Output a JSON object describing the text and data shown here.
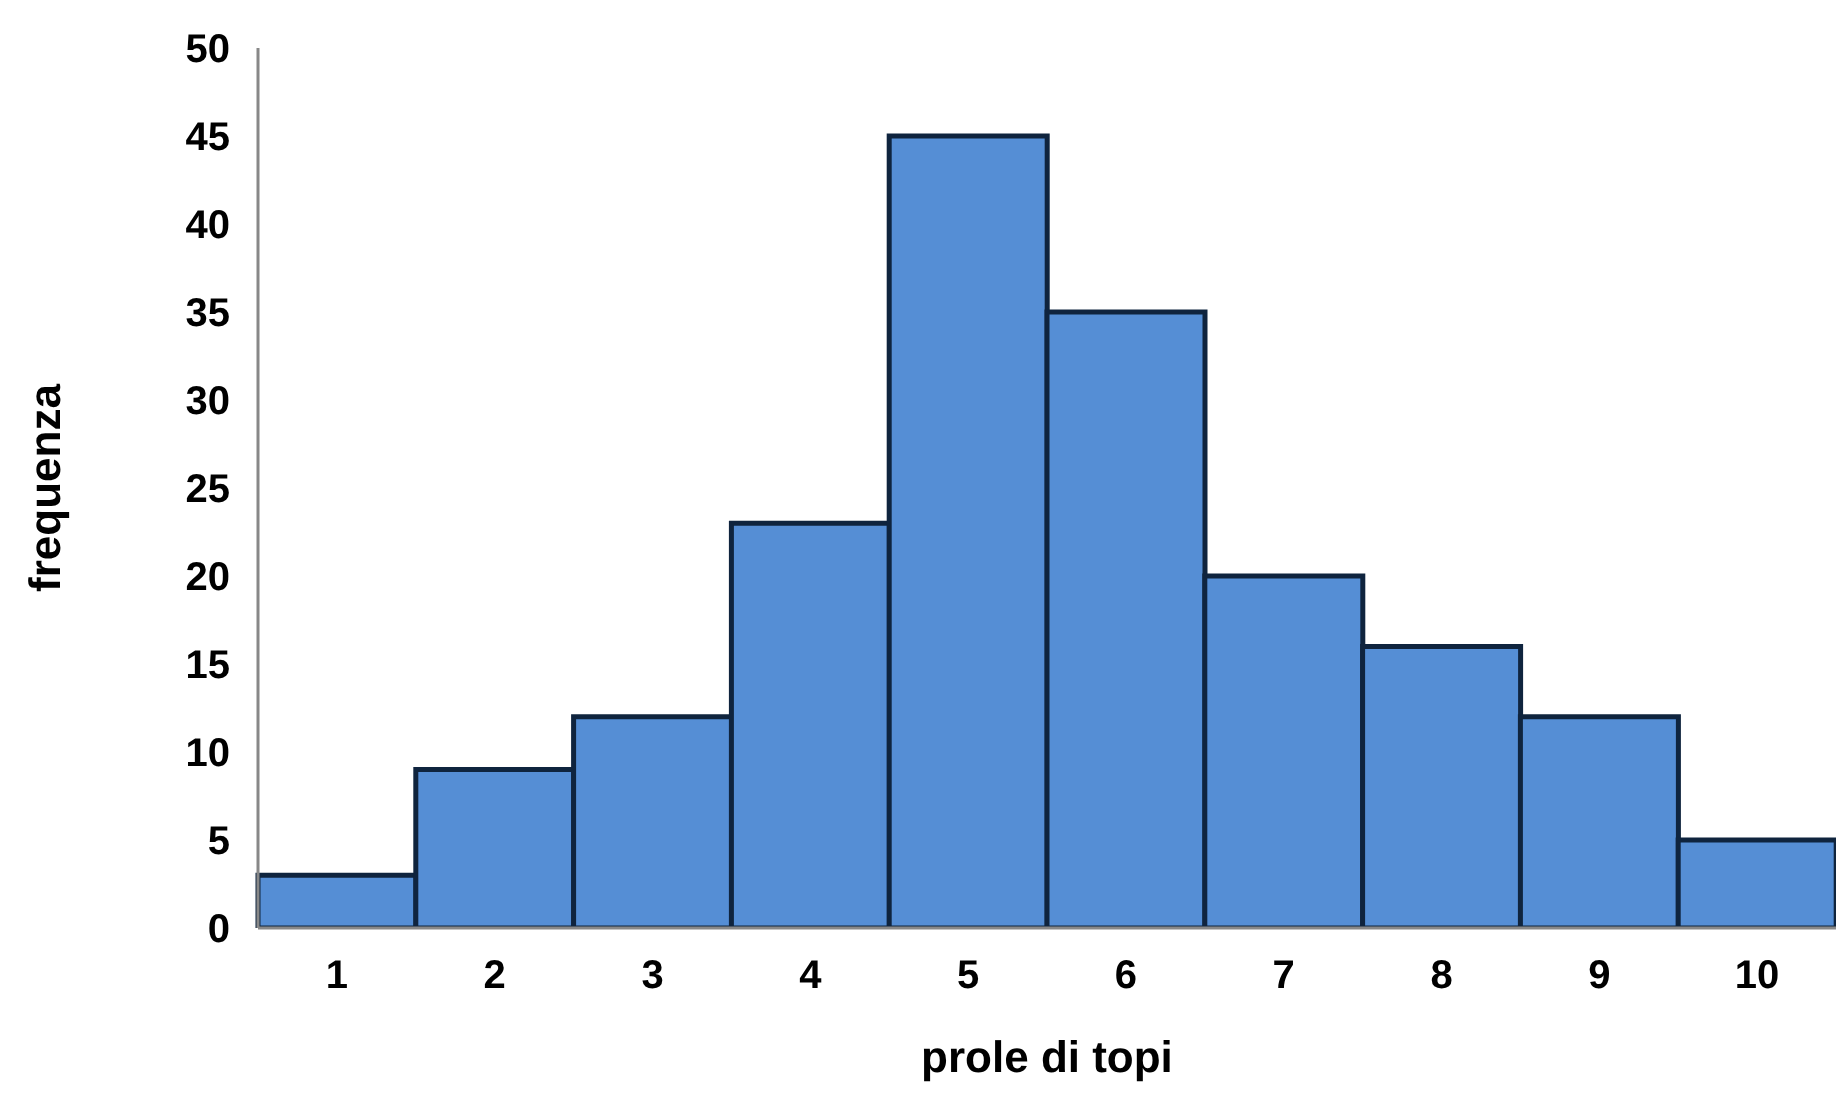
{
  "chart_data": {
    "type": "bar",
    "xlabel": "prole di topi",
    "ylabel": "frequenza",
    "categories": [
      "1",
      "2",
      "3",
      "4",
      "5",
      "6",
      "7",
      "8",
      "9",
      "10"
    ],
    "values": [
      3,
      9,
      12,
      23,
      45,
      35,
      20,
      16,
      12,
      5
    ],
    "color": "#558ed5",
    "ylim": [
      0,
      50
    ],
    "yticks": [
      0,
      5,
      10,
      15,
      20,
      25,
      30,
      35,
      40,
      45,
      50
    ],
    "grid": false,
    "legend": false
  }
}
